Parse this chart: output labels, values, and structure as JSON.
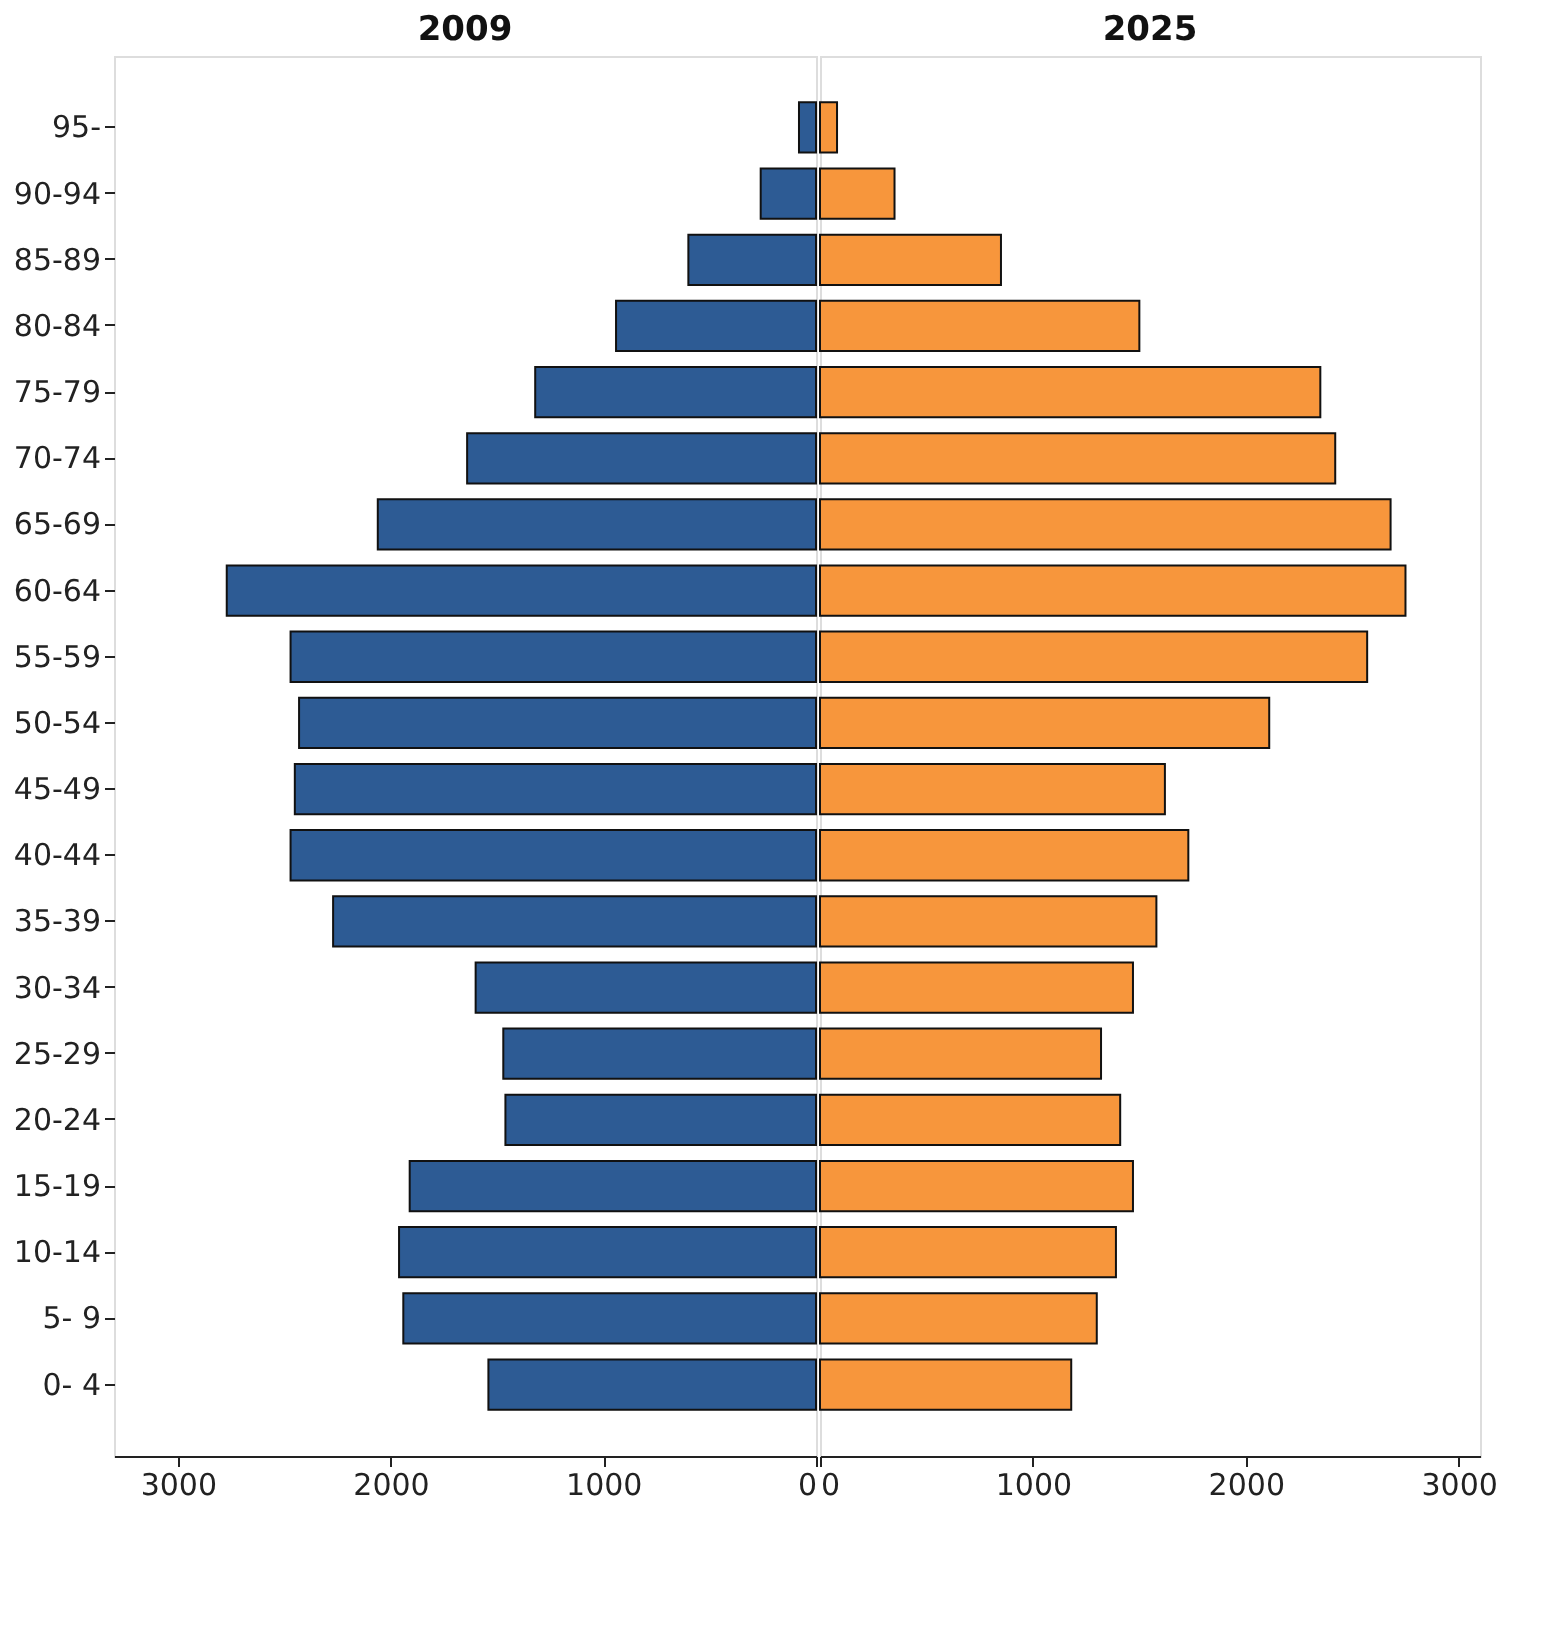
{
  "chart_data": [
    {
      "type": "bar",
      "orientation": "horizontal",
      "title": "2009",
      "categories": [
        "95-",
        "90-94",
        "85-89",
        "80-84",
        "75-79",
        "70-74",
        "65-69",
        "60-64",
        "55-59",
        "50-54",
        "45-49",
        "40-44",
        "35-39",
        "30-34",
        "25-29",
        "20-24",
        "15-19",
        "10-14",
        "5- 9",
        "0- 4"
      ],
      "values": [
        80,
        260,
        600,
        940,
        1320,
        1640,
        2060,
        2770,
        2470,
        2430,
        2450,
        2470,
        2270,
        1600,
        1470,
        1460,
        1910,
        1960,
        1940,
        1540
      ],
      "color": "#2d5b94",
      "xlim": [
        3300,
        0
      ],
      "xticks": [
        3000,
        2000,
        1000,
        0
      ],
      "grid": false
    },
    {
      "type": "bar",
      "orientation": "horizontal",
      "title": "2025",
      "categories": [
        "95-",
        "90-94",
        "85-89",
        "80-84",
        "75-79",
        "70-74",
        "65-69",
        "60-64",
        "55-59",
        "50-54",
        "45-49",
        "40-44",
        "35-39",
        "30-34",
        "25-29",
        "20-24",
        "15-19",
        "10-14",
        "5- 9",
        "0- 4"
      ],
      "values": [
        80,
        350,
        850,
        1500,
        2350,
        2420,
        2680,
        2750,
        2570,
        2110,
        1620,
        1730,
        1580,
        1470,
        1320,
        1410,
        1470,
        1390,
        1300,
        1180
      ],
      "color": "#f7963c",
      "xlim": [
        0,
        3100
      ],
      "xticks": [
        0,
        1000,
        2000,
        3000
      ],
      "tick_labels": "x",
      "grid": false
    }
  ]
}
